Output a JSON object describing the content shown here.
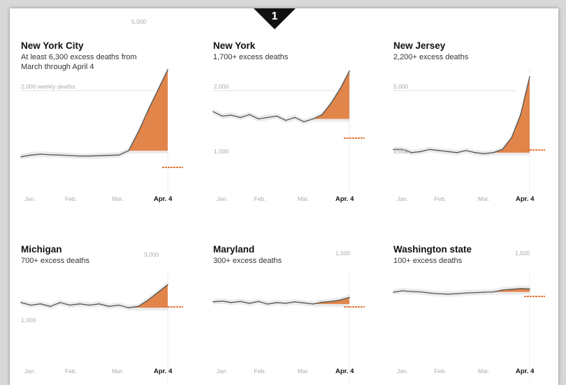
{
  "badge": {
    "label": "1"
  },
  "colors": {
    "excess": "#e07a3a",
    "line": "#555555",
    "band": "#e3e3e3",
    "guide": "#f0c8a8"
  },
  "chart_data": [
    {
      "type": "area",
      "title": "New York City",
      "subtitle": "At least 6,300 excess deaths from March through April 4",
      "x_ticks": [
        "Jan.",
        "Feb.",
        "Mar.",
        "Apr. 4"
      ],
      "y_labels": [
        "5,000",
        "2,000 weekly deaths"
      ],
      "ylim": [
        0,
        7000
      ],
      "values": [
        880,
        1000,
        1060,
        1020,
        1000,
        960,
        930,
        930,
        950,
        980,
        1000,
        1300,
        2600,
        4100,
        5500,
        6900
      ]
    },
    {
      "type": "area",
      "title": "New York",
      "subtitle": "1,700+ excess deaths",
      "x_ticks": [
        "Jan.",
        "Feb.",
        "Mar.",
        "Apr. 4"
      ],
      "y_labels": [
        "2,000",
        "1,000"
      ],
      "ylim": [
        500,
        4000
      ],
      "values": [
        2500,
        2350,
        2380,
        2300,
        2400,
        2250,
        2300,
        2350,
        2200,
        2300,
        2150,
        2250,
        2400,
        2800,
        3300,
        3900
      ]
    },
    {
      "type": "area",
      "title": "New Jersey",
      "subtitle": "2,200+ excess deaths",
      "x_ticks": [
        "Jan.",
        "Feb.",
        "Mar.",
        "Apr. 4"
      ],
      "y_labels": [
        "5,000",
        "1,000"
      ],
      "ylim": [
        500,
        5300
      ],
      "values": [
        1450,
        1450,
        1300,
        1350,
        1450,
        1400,
        1350,
        1300,
        1400,
        1300,
        1250,
        1300,
        1450,
        2000,
        3100,
        4900
      ]
    },
    {
      "type": "area",
      "title": "Michigan",
      "subtitle": "700+ excess deaths",
      "x_ticks": [
        "Jan.",
        "Feb.",
        "Mar.",
        "Apr. 4"
      ],
      "y_labels": [
        "3,000",
        "1,000"
      ],
      "ylim": [
        700,
        3300
      ],
      "values": [
        2100,
        2000,
        2050,
        1950,
        2100,
        2000,
        2050,
        2000,
        2050,
        1950,
        2000,
        1900,
        1950,
        2200,
        2500,
        2800
      ]
    },
    {
      "type": "area",
      "title": "Maryland",
      "subtitle": "300+ excess deaths",
      "x_ticks": [
        "Jan.",
        "Feb.",
        "Mar.",
        "Apr. 4"
      ],
      "y_labels": [
        "1,500",
        ""
      ],
      "ylim": [
        0,
        1800
      ],
      "values": [
        990,
        1010,
        970,
        1000,
        950,
        1000,
        930,
        970,
        950,
        990,
        960,
        930,
        980,
        1000,
        1040,
        1110
      ]
    },
    {
      "type": "area",
      "title": "Washington state",
      "subtitle": "100+ excess deaths",
      "x_ticks": [
        "Jan.",
        "Feb.",
        "Mar.",
        "Apr. 4"
      ],
      "y_labels": [
        "1,500",
        ""
      ],
      "ylim": [
        0,
        1800
      ],
      "values": [
        1250,
        1290,
        1270,
        1260,
        1230,
        1210,
        1200,
        1210,
        1230,
        1240,
        1250,
        1260,
        1310,
        1330,
        1350,
        1340
      ]
    }
  ]
}
